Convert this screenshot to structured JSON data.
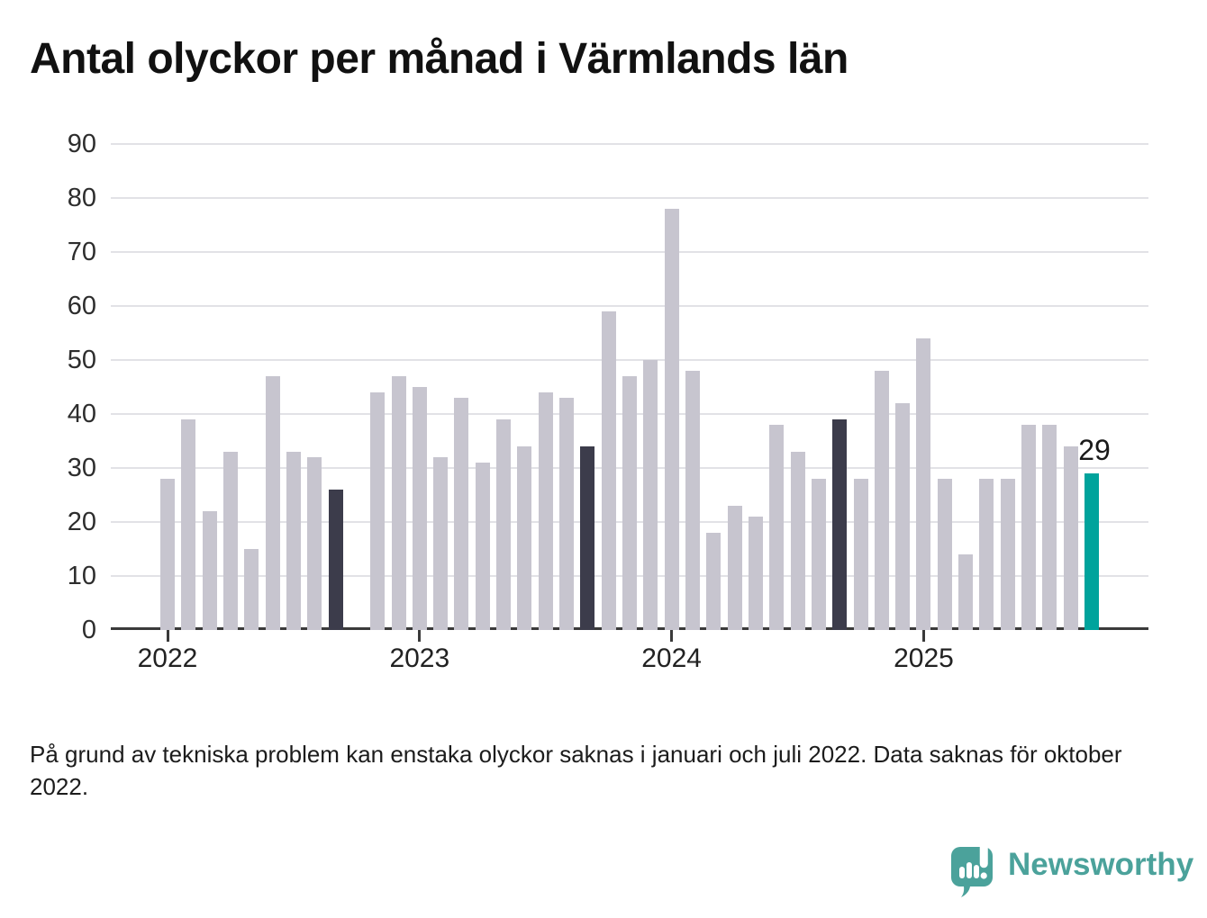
{
  "title": "Antal olyckor per månad i Värmlands län",
  "footnote": "På grund av tekniska problem kan enstaka olyckor saknas i januari och juli 2022. Data saknas för oktober 2022.",
  "branding": {
    "name": "Newsworthy",
    "logo_icon": "speech-bubble-bar-chart-icon"
  },
  "colors": {
    "bar_default": "#c7c5cf",
    "bar_reference": "#3c3c4b",
    "bar_current": "#00a39c",
    "grid": "#e2e2e6",
    "axis": "#3a3a3a",
    "title_text": "#111111",
    "tick_text": "#2d2d2d",
    "brand": "#4ba29b",
    "background": "#ffffff"
  },
  "chart_data": {
    "type": "bar",
    "title": "Antal olyckor per månad i Värmlands län",
    "xlabel": "",
    "ylabel": "",
    "ylim": [
      0,
      90
    ],
    "yticks": [
      0,
      10,
      20,
      30,
      40,
      50,
      60,
      70,
      80,
      90
    ],
    "grid": true,
    "legend_position": "none",
    "x_tick_years": [
      {
        "label": "2022",
        "month_index": 0
      },
      {
        "label": "2023",
        "month_index": 12
      },
      {
        "label": "2024",
        "month_index": 24
      },
      {
        "label": "2025",
        "month_index": 36
      }
    ],
    "annotation": {
      "text": "29",
      "month_index": 44
    },
    "series": [
      {
        "name": "Antal olyckor per månad",
        "points": [
          {
            "month": "2022-01",
            "value": 28,
            "color": "default"
          },
          {
            "month": "2022-02",
            "value": 39,
            "color": "default"
          },
          {
            "month": "2022-03",
            "value": 22,
            "color": "default"
          },
          {
            "month": "2022-04",
            "value": 33,
            "color": "default"
          },
          {
            "month": "2022-05",
            "value": 15,
            "color": "default"
          },
          {
            "month": "2022-06",
            "value": 47,
            "color": "default"
          },
          {
            "month": "2022-07",
            "value": 33,
            "color": "default"
          },
          {
            "month": "2022-08",
            "value": 32,
            "color": "default"
          },
          {
            "month": "2022-09",
            "value": 26,
            "color": "reference"
          },
          {
            "month": "2022-10",
            "value": null,
            "color": "default"
          },
          {
            "month": "2022-11",
            "value": 44,
            "color": "default"
          },
          {
            "month": "2022-12",
            "value": 47,
            "color": "default"
          },
          {
            "month": "2023-01",
            "value": 45,
            "color": "default"
          },
          {
            "month": "2023-02",
            "value": 32,
            "color": "default"
          },
          {
            "month": "2023-03",
            "value": 43,
            "color": "default"
          },
          {
            "month": "2023-04",
            "value": 31,
            "color": "default"
          },
          {
            "month": "2023-05",
            "value": 39,
            "color": "default"
          },
          {
            "month": "2023-06",
            "value": 34,
            "color": "default"
          },
          {
            "month": "2023-07",
            "value": 44,
            "color": "default"
          },
          {
            "month": "2023-08",
            "value": 43,
            "color": "default"
          },
          {
            "month": "2023-09",
            "value": 34,
            "color": "reference"
          },
          {
            "month": "2023-10",
            "value": 59,
            "color": "default"
          },
          {
            "month": "2023-11",
            "value": 47,
            "color": "default"
          },
          {
            "month": "2023-12",
            "value": 50,
            "color": "default"
          },
          {
            "month": "2024-01",
            "value": 78,
            "color": "default"
          },
          {
            "month": "2024-02",
            "value": 48,
            "color": "default"
          },
          {
            "month": "2024-03",
            "value": 18,
            "color": "default"
          },
          {
            "month": "2024-04",
            "value": 23,
            "color": "default"
          },
          {
            "month": "2024-05",
            "value": 21,
            "color": "default"
          },
          {
            "month": "2024-06",
            "value": 38,
            "color": "default"
          },
          {
            "month": "2024-07",
            "value": 33,
            "color": "default"
          },
          {
            "month": "2024-08",
            "value": 28,
            "color": "default"
          },
          {
            "month": "2024-09",
            "value": 39,
            "color": "reference"
          },
          {
            "month": "2024-10",
            "value": 28,
            "color": "default"
          },
          {
            "month": "2024-11",
            "value": 48,
            "color": "default"
          },
          {
            "month": "2024-12",
            "value": 42,
            "color": "default"
          },
          {
            "month": "2025-01",
            "value": 54,
            "color": "default"
          },
          {
            "month": "2025-02",
            "value": 28,
            "color": "default"
          },
          {
            "month": "2025-03",
            "value": 14,
            "color": "default"
          },
          {
            "month": "2025-04",
            "value": 28,
            "color": "default"
          },
          {
            "month": "2025-05",
            "value": 28,
            "color": "default"
          },
          {
            "month": "2025-06",
            "value": 38,
            "color": "default"
          },
          {
            "month": "2025-07",
            "value": 38,
            "color": "default"
          },
          {
            "month": "2025-08",
            "value": 34,
            "color": "default"
          },
          {
            "month": "2025-09",
            "value": 29,
            "color": "current"
          }
        ]
      }
    ]
  }
}
